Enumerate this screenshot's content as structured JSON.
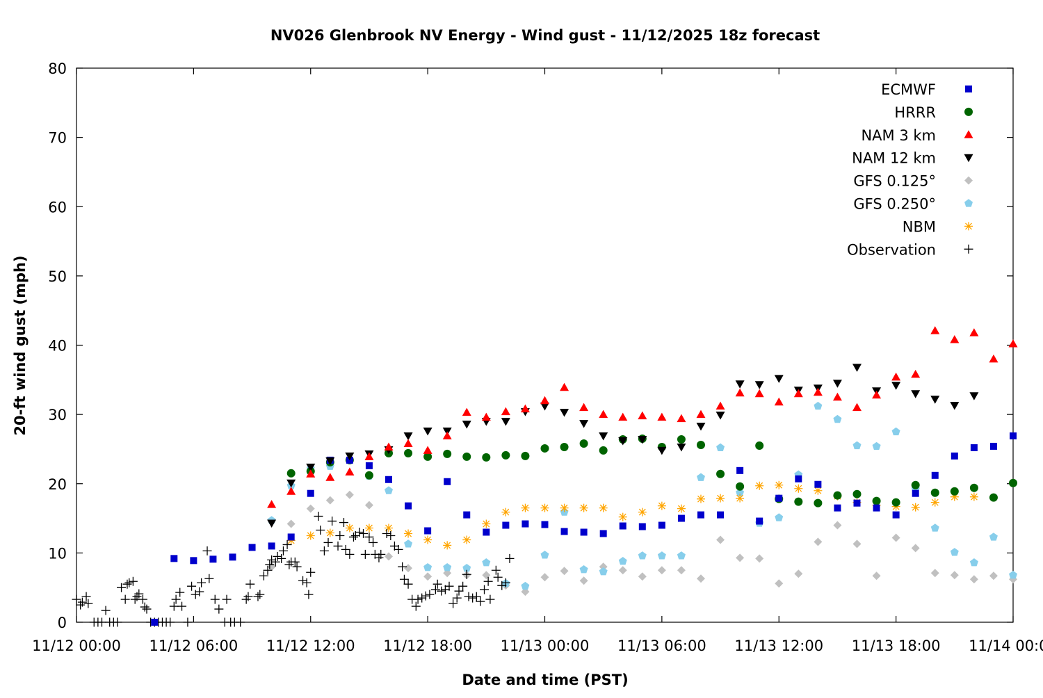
{
  "chart_data": {
    "type": "scatter",
    "title": "NV026 Glenbrook NV Energy - Wind gust - 11/12/2025 18z forecast",
    "xlabel": "Date and time (PST)",
    "ylabel": "20-ft wind gust (mph)",
    "x_unit": "hours since 11/12 00:00 PST",
    "xlim": [
      0,
      48
    ],
    "ylim": [
      0,
      80
    ],
    "x_ticks": [
      {
        "value": 0,
        "label": "11/12 00:00"
      },
      {
        "value": 6,
        "label": "11/12 06:00"
      },
      {
        "value": 12,
        "label": "11/12 12:00"
      },
      {
        "value": 18,
        "label": "11/12 18:00"
      },
      {
        "value": 24,
        "label": "11/13 00:00"
      },
      {
        "value": 30,
        "label": "11/13 06:00"
      },
      {
        "value": 36,
        "label": "11/13 12:00"
      },
      {
        "value": 42,
        "label": "11/13 18:00"
      },
      {
        "value": 48,
        "label": "11/14 00:00"
      }
    ],
    "y_ticks": [
      {
        "value": 0,
        "label": "0"
      },
      {
        "value": 10,
        "label": "10"
      },
      {
        "value": 20,
        "label": "20"
      },
      {
        "value": 30,
        "label": "30"
      },
      {
        "value": 40,
        "label": "40"
      },
      {
        "value": 50,
        "label": "50"
      },
      {
        "value": 60,
        "label": "60"
      },
      {
        "value": 70,
        "label": "70"
      },
      {
        "value": 80,
        "label": "80"
      }
    ],
    "grid": false,
    "legend_position": "top-right",
    "series": [
      {
        "name": "ECMWF",
        "color": "#0000cc",
        "marker": "square",
        "start": 4,
        "values": [
          0,
          9.2,
          8.9,
          9.1,
          9.4,
          10.8,
          11.0,
          12.3,
          18.6,
          23.4,
          23.4,
          22.6,
          20.6,
          16.8,
          13.2,
          20.3,
          15.5,
          13.0,
          14.0,
          14.2,
          14.1,
          13.1,
          13.0,
          12.8,
          13.9,
          13.8,
          14.0,
          15.0,
          15.5,
          15.5,
          21.9,
          14.6,
          17.9,
          20.7,
          19.9,
          16.5,
          17.2,
          16.5,
          15.5,
          18.6,
          21.2,
          24.0,
          25.2,
          25.4,
          26.9
        ]
      },
      {
        "name": "HRRR",
        "color": "#006400",
        "marker": "circle",
        "start": 11,
        "values": [
          21.5,
          21.8,
          23.1,
          23.4,
          21.2,
          24.4,
          24.4,
          23.9,
          24.3,
          23.9,
          23.8,
          24.1,
          24.0,
          25.1,
          25.3,
          25.8,
          24.8,
          26.4,
          26.5,
          25.3,
          26.4,
          25.6,
          21.4,
          19.6,
          25.5,
          17.8,
          17.4,
          17.2,
          18.3,
          18.5,
          17.5,
          17.3,
          19.8,
          18.7,
          18.9,
          19.4,
          18.0,
          20.1
        ]
      },
      {
        "name": "NAM 3 km",
        "color": "#ff0000",
        "marker": "triangle-up",
        "start": 10,
        "values": [
          17.0,
          18.9,
          21.4,
          20.9,
          21.7,
          23.9,
          25.3,
          25.8,
          24.8,
          26.9,
          30.3,
          29.6,
          30.4,
          30.8,
          32.0,
          33.9,
          31.0,
          30.0,
          29.6,
          29.8,
          29.6,
          29.4,
          30.0,
          31.2,
          33.1,
          33.0,
          31.8,
          33.0,
          33.2,
          32.5,
          31.0,
          32.8,
          35.4,
          35.8,
          42.1,
          40.8,
          41.8,
          38.0,
          40.2
        ]
      },
      {
        "name": "NAM 12 km",
        "color": "#000000",
        "marker": "triangle-down",
        "start": 10,
        "values": [
          14.3,
          20.1,
          22.4,
          23.3,
          24.0,
          24.3,
          24.9,
          26.9,
          27.6,
          27.6,
          28.6,
          29.0,
          29.0,
          30.4,
          31.2,
          30.3,
          28.7,
          26.9,
          26.2,
          26.4,
          24.8,
          25.3,
          28.3,
          29.9,
          34.4,
          34.3,
          35.2,
          33.5,
          33.8,
          34.5,
          36.8,
          33.4,
          34.2,
          33.0,
          32.2,
          31.3,
          32.7
        ]
      },
      {
        "name": "GFS 0.125°",
        "color": "#c0c0c0",
        "marker": "diamond",
        "start": 10,
        "values": [
          8.0,
          14.2,
          16.4,
          17.6,
          18.4,
          16.9,
          9.5,
          7.8,
          6.6,
          7.1,
          6.8,
          6.8,
          5.3,
          4.4,
          6.5,
          7.4,
          6.0,
          8.0,
          7.5,
          6.6,
          7.5,
          7.5,
          6.3,
          11.9,
          9.3,
          9.2,
          5.6,
          7.0,
          11.6,
          14.0,
          11.3,
          6.7,
          12.2,
          10.7,
          7.1,
          6.8,
          6.2,
          6.7,
          6.2
        ]
      },
      {
        "name": "GFS 0.250°",
        "color": "#87ceeb",
        "marker": "pentagon",
        "start": 10,
        "values": [
          14.7,
          19.7,
          22.2,
          22.5,
          23.4,
          21.1,
          19.0,
          11.3,
          7.9,
          7.9,
          7.8,
          8.6,
          5.6,
          5.2,
          9.7,
          15.9,
          7.6,
          7.3,
          8.8,
          9.6,
          9.6,
          9.6,
          20.9,
          25.2,
          18.7,
          14.3,
          15.1,
          21.3,
          31.2,
          29.3,
          25.5,
          25.4,
          27.5,
          19.2,
          13.6,
          10.1,
          8.6,
          12.3,
          6.8
        ]
      },
      {
        "name": "NBM",
        "color": "#ffa500",
        "marker": "asterisk",
        "start": 11,
        "values": [
          11.8,
          12.5,
          12.9,
          13.6,
          13.6,
          13.6,
          12.8,
          11.9,
          11.1,
          11.9,
          14.2,
          15.9,
          16.5,
          16.5,
          16.5,
          16.5,
          16.5,
          15.2,
          15.9,
          16.8,
          16.4,
          17.8,
          17.9,
          17.9,
          19.7,
          19.8,
          19.3,
          19.0,
          18.2,
          17.3,
          16.9,
          16.7,
          16.6,
          17.3,
          18.1,
          18.1
        ]
      },
      {
        "name": "Observation",
        "color": "#000000",
        "marker": "plus",
        "points": [
          [
            0,
            3.3
          ],
          [
            0.2,
            2.5
          ],
          [
            0.3,
            2.9
          ],
          [
            0.5,
            3.7
          ],
          [
            0.6,
            2.7
          ],
          [
            0.9,
            0
          ],
          [
            1.1,
            0
          ],
          [
            1.3,
            0
          ],
          [
            1.5,
            1.7
          ],
          [
            1.7,
            0
          ],
          [
            1.9,
            0
          ],
          [
            2.1,
            0
          ],
          [
            2.3,
            5.0
          ],
          [
            2.5,
            3.3
          ],
          [
            2.6,
            5.5
          ],
          [
            2.7,
            5.7
          ],
          [
            2.9,
            5.9
          ],
          [
            3.0,
            3.3
          ],
          [
            3.1,
            3.7
          ],
          [
            3.2,
            4.1
          ],
          [
            3.4,
            3.3
          ],
          [
            3.5,
            2.2
          ],
          [
            3.6,
            1.9
          ],
          [
            3.8,
            0
          ],
          [
            4.0,
            0
          ],
          [
            4.2,
            0
          ],
          [
            4.4,
            0
          ],
          [
            4.6,
            0
          ],
          [
            4.8,
            0
          ],
          [
            5.0,
            2.3
          ],
          [
            5.1,
            3.3
          ],
          [
            5.3,
            4.3
          ],
          [
            5.4,
            2.3
          ],
          [
            5.7,
            0
          ],
          [
            5.9,
            5.2
          ],
          [
            6.1,
            4.0
          ],
          [
            6.3,
            4.4
          ],
          [
            6.4,
            5.7
          ],
          [
            6.7,
            10.3
          ],
          [
            6.8,
            6.3
          ],
          [
            7.1,
            3.3
          ],
          [
            7.3,
            1.9
          ],
          [
            7.6,
            0
          ],
          [
            7.7,
            3.3
          ],
          [
            7.9,
            0
          ],
          [
            8.1,
            0
          ],
          [
            8.4,
            0
          ],
          [
            8.7,
            3.3
          ],
          [
            8.8,
            3.7
          ],
          [
            8.9,
            5.5
          ],
          [
            9.3,
            3.7
          ],
          [
            9.4,
            4.0
          ],
          [
            9.6,
            6.7
          ],
          [
            9.8,
            7.5
          ],
          [
            9.9,
            8.3
          ],
          [
            10.0,
            9.0
          ],
          [
            10.2,
            8.7
          ],
          [
            10.3,
            9.5
          ],
          [
            10.5,
            9.2
          ],
          [
            10.6,
            10.3
          ],
          [
            10.8,
            11.2
          ],
          [
            10.9,
            8.3
          ],
          [
            11.0,
            8.7
          ],
          [
            11.2,
            8.7
          ],
          [
            11.3,
            8.0
          ],
          [
            11.6,
            6.0
          ],
          [
            11.8,
            5.7
          ],
          [
            11.9,
            4.0
          ],
          [
            12.0,
            7.2
          ],
          [
            12.4,
            15.3
          ],
          [
            12.5,
            13.3
          ],
          [
            12.7,
            10.3
          ],
          [
            12.9,
            11.5
          ],
          [
            13.1,
            14.6
          ],
          [
            13.4,
            11.0
          ],
          [
            13.5,
            12.5
          ],
          [
            13.7,
            14.4
          ],
          [
            13.8,
            10.5
          ],
          [
            14.0,
            9.8
          ],
          [
            14.2,
            12.3
          ],
          [
            14.3,
            12.5
          ],
          [
            14.5,
            13.0
          ],
          [
            14.7,
            12.8
          ],
          [
            14.8,
            9.8
          ],
          [
            15.0,
            12.3
          ],
          [
            15.2,
            11.5
          ],
          [
            15.3,
            9.8
          ],
          [
            15.5,
            9.3
          ],
          [
            15.6,
            9.8
          ],
          [
            15.9,
            12.8
          ],
          [
            16.1,
            12.5
          ],
          [
            16.3,
            11.0
          ],
          [
            16.5,
            10.5
          ],
          [
            16.7,
            8.0
          ],
          [
            16.8,
            6.2
          ],
          [
            17.0,
            5.5
          ],
          [
            17.2,
            3.3
          ],
          [
            17.4,
            2.3
          ],
          [
            17.5,
            3.3
          ],
          [
            17.7,
            3.5
          ],
          [
            17.9,
            3.8
          ],
          [
            18.1,
            4.0
          ],
          [
            18.4,
            4.7
          ],
          [
            18.5,
            5.5
          ],
          [
            18.7,
            4.5
          ],
          [
            18.9,
            4.7
          ],
          [
            19.1,
            5.2
          ],
          [
            19.3,
            2.7
          ],
          [
            19.5,
            3.5
          ],
          [
            19.6,
            4.5
          ],
          [
            19.8,
            5.2
          ],
          [
            20.0,
            6.9
          ],
          [
            20.1,
            3.7
          ],
          [
            20.3,
            3.5
          ],
          [
            20.5,
            3.7
          ],
          [
            20.7,
            3.0
          ],
          [
            20.9,
            4.7
          ],
          [
            21.1,
            5.9
          ],
          [
            21.2,
            3.3
          ],
          [
            21.5,
            7.5
          ],
          [
            21.6,
            6.5
          ],
          [
            21.8,
            5.3
          ],
          [
            22.0,
            5.7
          ],
          [
            22.2,
            9.2
          ]
        ]
      }
    ]
  }
}
